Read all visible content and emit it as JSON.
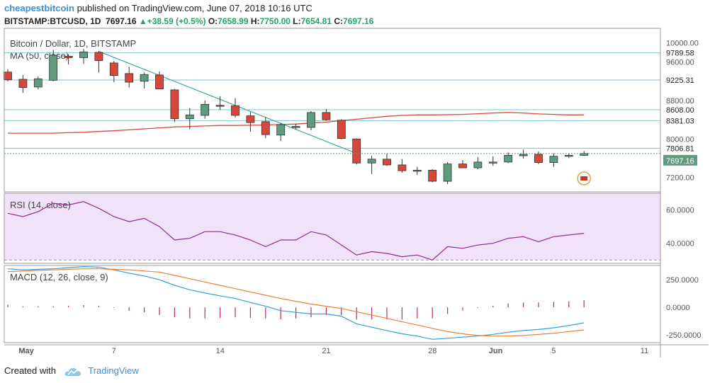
{
  "header": {
    "username": "cheapestbitcoin",
    "published_text": "published on TradingView.com, June 07, 2018 10:16 UTC"
  },
  "ohlc": {
    "symbol": "BITSTAMP:BTCUSD, 1D",
    "last": "7697.16",
    "change": "▲+38.59 (+0.5%)",
    "o_label": "O:",
    "o": "7658.99",
    "h_label": "H:",
    "h": "7750.00",
    "l_label": "L:",
    "l": "7654.81",
    "c_label": "C:",
    "c": "7697.16"
  },
  "footer": {
    "created_with": "Created with",
    "brand": "TradingView"
  },
  "colors": {
    "up": "#5d9c7f",
    "down": "#d8483a",
    "ma": "#d8483a",
    "trend": "#3aa89a",
    "rsi_line": "#8e2d8e",
    "rsi_band": "#f1e2fa",
    "macd": "#2f9fe0",
    "signal": "#f07f30",
    "hist": "#b0306c",
    "hline": "#7ec7cf",
    "axis": "#555555"
  },
  "chart_data": [
    {
      "type": "candlestick",
      "title": "Bitcoin / Dollar, 1D, BITSTAMP",
      "indicator_label": "MA (50, close)",
      "ylim": [
        6900,
        10300
      ],
      "y_ticks": [
        "10000.00",
        "9600.00",
        "8800.00",
        "8000.00",
        "7200.00"
      ],
      "price_labels": [
        {
          "text": "9789.58",
          "value": 9789.58
        },
        {
          "text": "9225.31",
          "value": 9225.31
        },
        {
          "text": "8608.00",
          "value": 8608
        },
        {
          "text": "8381.03",
          "value": 8381.03
        },
        {
          "text": "7806.81",
          "value": 7806.81
        }
      ],
      "current_label": {
        "text": "7697.16",
        "value": 7697.16
      },
      "x_ticks": [
        {
          "label": "May",
          "index": 1
        },
        {
          "label": "7",
          "index": 7
        },
        {
          "label": "14",
          "index": 14
        },
        {
          "label": "21",
          "index": 21
        },
        {
          "label": "28",
          "index": 28
        },
        {
          "label": "Jun",
          "index": 32
        },
        {
          "label": "5",
          "index": 36
        },
        {
          "label": "11",
          "index": 42
        }
      ],
      "candles": [
        {
          "o": 9390,
          "h": 9450,
          "l": 9200,
          "c": 9230
        },
        {
          "o": 9240,
          "h": 9330,
          "l": 8960,
          "c": 9070
        },
        {
          "o": 9080,
          "h": 9300,
          "l": 9030,
          "c": 9250
        },
        {
          "o": 9220,
          "h": 9850,
          "l": 9200,
          "c": 9740
        },
        {
          "o": 9720,
          "h": 9760,
          "l": 9550,
          "c": 9690
        },
        {
          "o": 9690,
          "h": 9870,
          "l": 9560,
          "c": 9810
        },
        {
          "o": 9800,
          "h": 9830,
          "l": 9380,
          "c": 9630
        },
        {
          "o": 9580,
          "h": 9620,
          "l": 9180,
          "c": 9320
        },
        {
          "o": 9360,
          "h": 9500,
          "l": 9070,
          "c": 9180
        },
        {
          "o": 9200,
          "h": 9380,
          "l": 9050,
          "c": 9340
        },
        {
          "o": 9330,
          "h": 9400,
          "l": 9040,
          "c": 9040
        },
        {
          "o": 9020,
          "h": 9040,
          "l": 8350,
          "c": 8420
        },
        {
          "o": 8420,
          "h": 8640,
          "l": 8200,
          "c": 8500
        },
        {
          "o": 8490,
          "h": 8800,
          "l": 8420,
          "c": 8720
        },
        {
          "o": 8700,
          "h": 8890,
          "l": 8600,
          "c": 8690
        },
        {
          "o": 8690,
          "h": 8850,
          "l": 8450,
          "c": 8490
        },
        {
          "o": 8480,
          "h": 8560,
          "l": 8150,
          "c": 8340
        },
        {
          "o": 8360,
          "h": 8450,
          "l": 8020,
          "c": 8090
        },
        {
          "o": 8080,
          "h": 8330,
          "l": 7960,
          "c": 8300
        },
        {
          "o": 8260,
          "h": 8320,
          "l": 8200,
          "c": 8250
        },
        {
          "o": 8240,
          "h": 8580,
          "l": 8180,
          "c": 8550
        },
        {
          "o": 8550,
          "h": 8620,
          "l": 8380,
          "c": 8400
        },
        {
          "o": 8390,
          "h": 8410,
          "l": 7990,
          "c": 8010
        },
        {
          "o": 8000,
          "h": 8010,
          "l": 7470,
          "c": 7500
        },
        {
          "o": 7500,
          "h": 7650,
          "l": 7270,
          "c": 7580
        },
        {
          "o": 7580,
          "h": 7700,
          "l": 7440,
          "c": 7460
        },
        {
          "o": 7460,
          "h": 7580,
          "l": 7300,
          "c": 7340
        },
        {
          "o": 7340,
          "h": 7420,
          "l": 7250,
          "c": 7350
        },
        {
          "o": 7350,
          "h": 7370,
          "l": 7100,
          "c": 7120
        },
        {
          "o": 7120,
          "h": 7520,
          "l": 7060,
          "c": 7480
        },
        {
          "o": 7480,
          "h": 7560,
          "l": 7400,
          "c": 7400
        },
        {
          "o": 7400,
          "h": 7620,
          "l": 7370,
          "c": 7520
        },
        {
          "o": 7520,
          "h": 7640,
          "l": 7440,
          "c": 7520
        },
        {
          "o": 7520,
          "h": 7720,
          "l": 7500,
          "c": 7660
        },
        {
          "o": 7650,
          "h": 7780,
          "l": 7590,
          "c": 7680
        },
        {
          "o": 7680,
          "h": 7740,
          "l": 7480,
          "c": 7510
        },
        {
          "o": 7510,
          "h": 7700,
          "l": 7420,
          "c": 7640
        },
        {
          "o": 7640,
          "h": 7700,
          "l": 7600,
          "c": 7660
        },
        {
          "o": 7658.99,
          "h": 7750,
          "l": 7654.81,
          "c": 7697.16
        }
      ],
      "ma50": [
        8120,
        8120,
        8120,
        8120,
        8130,
        8140,
        8155,
        8170,
        8190,
        8210,
        8230,
        8250,
        8260,
        8270,
        8280,
        8280,
        8285,
        8290,
        8300,
        8310,
        8330,
        8350,
        8380,
        8410,
        8440,
        8470,
        8490,
        8500,
        8500,
        8505,
        8510,
        8525,
        8540,
        8550,
        8540,
        8520,
        8510,
        8500,
        8500
      ],
      "trendline": {
        "x": [
          6,
          23
        ],
        "y": [
          9820,
          7700
        ]
      }
    },
    {
      "type": "line",
      "title": "RSI (14, close)",
      "ylim": [
        28,
        70
      ],
      "y_ticks": [
        "60.0000",
        "40.0000"
      ],
      "band": [
        30,
        70
      ],
      "values": [
        58,
        56,
        59,
        64,
        63,
        65,
        61,
        56,
        53,
        55,
        50,
        42,
        43,
        47,
        47,
        45,
        42,
        38,
        42,
        42,
        47,
        45,
        39,
        33,
        35,
        34,
        32,
        33,
        30,
        38,
        37,
        39,
        40,
        43,
        44,
        41,
        44,
        45,
        46
      ]
    },
    {
      "type": "line",
      "title": "MACD (12, 26, close, 9)",
      "ylim": [
        -320,
        380
      ],
      "y_ticks": [
        "250.0000",
        "0.0000",
        "-250.0000"
      ],
      "series": [
        {
          "values": [
            350,
            340,
            345,
            350,
            360,
            370,
            365,
            340,
            310,
            285,
            250,
            200,
            160,
            130,
            105,
            80,
            45,
            10,
            -30,
            -45,
            -60,
            -60,
            -80,
            -150,
            -180,
            -210,
            -240,
            -260,
            -290,
            -280,
            -270,
            -260,
            -245,
            -225,
            -210,
            -200,
            -185,
            -165,
            -140
          ]
        },
        {
          "values": [
            325,
            330,
            335,
            340,
            345,
            350,
            350,
            345,
            340,
            330,
            320,
            290,
            260,
            230,
            200,
            170,
            140,
            110,
            80,
            55,
            30,
            10,
            -10,
            -40,
            -70,
            -100,
            -130,
            -160,
            -190,
            -220,
            -240,
            -255,
            -260,
            -260,
            -255,
            -245,
            -235,
            -220,
            -205
          ]
        }
      ],
      "histogram": [
        25,
        10,
        10,
        10,
        15,
        20,
        15,
        -5,
        -30,
        -45,
        -70,
        -90,
        -100,
        -100,
        -95,
        -90,
        -95,
        -100,
        -110,
        -100,
        -90,
        -70,
        -70,
        -110,
        -110,
        -110,
        -110,
        -100,
        -100,
        -60,
        -30,
        -5,
        15,
        35,
        45,
        45,
        50,
        55,
        65
      ]
    }
  ]
}
